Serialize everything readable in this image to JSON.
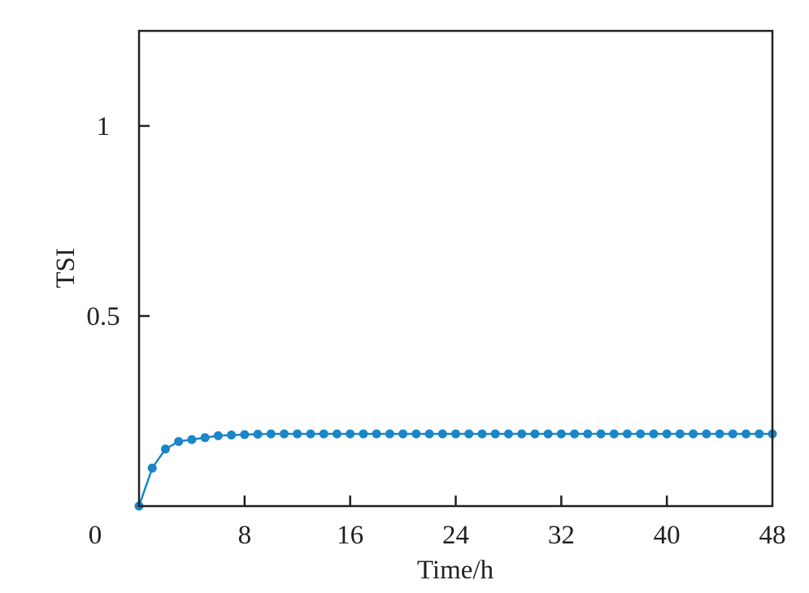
{
  "chart_data": {
    "type": "line",
    "title": "",
    "xlabel": "Time/h",
    "ylabel": "TSI",
    "xlim": [
      0,
      48
    ],
    "ylim": [
      0,
      1.25
    ],
    "x_ticks": [
      0,
      8,
      16,
      24,
      32,
      40,
      48
    ],
    "x_tick_labels": [
      "0",
      "8",
      "16",
      "24",
      "32",
      "40",
      "48"
    ],
    "y_ticks": [
      0.5,
      1
    ],
    "y_tick_labels": [
      "0.5",
      "1"
    ],
    "grid": false,
    "legend": "none",
    "colors": {
      "series": "#1a85c8",
      "axes": "#231f20"
    },
    "series": [
      {
        "x": [
          0,
          1,
          2,
          3,
          4,
          5,
          6,
          7,
          8,
          9,
          10,
          11,
          12,
          13,
          14,
          15,
          16,
          17,
          18,
          19,
          20,
          21,
          22,
          23,
          24,
          25,
          26,
          27,
          28,
          29,
          30,
          31,
          32,
          33,
          34,
          35,
          36,
          37,
          38,
          39,
          40,
          41,
          42,
          43,
          44,
          45,
          46,
          47,
          48
        ],
        "values": [
          0.0,
          0.1,
          0.15,
          0.17,
          0.175,
          0.18,
          0.185,
          0.187,
          0.188,
          0.189,
          0.19,
          0.19,
          0.19,
          0.19,
          0.19,
          0.19,
          0.19,
          0.19,
          0.19,
          0.19,
          0.19,
          0.19,
          0.19,
          0.19,
          0.19,
          0.19,
          0.19,
          0.19,
          0.19,
          0.19,
          0.19,
          0.19,
          0.19,
          0.19,
          0.19,
          0.19,
          0.19,
          0.19,
          0.19,
          0.19,
          0.19,
          0.19,
          0.19,
          0.19,
          0.19,
          0.19,
          0.19,
          0.19,
          0.19
        ]
      }
    ]
  }
}
